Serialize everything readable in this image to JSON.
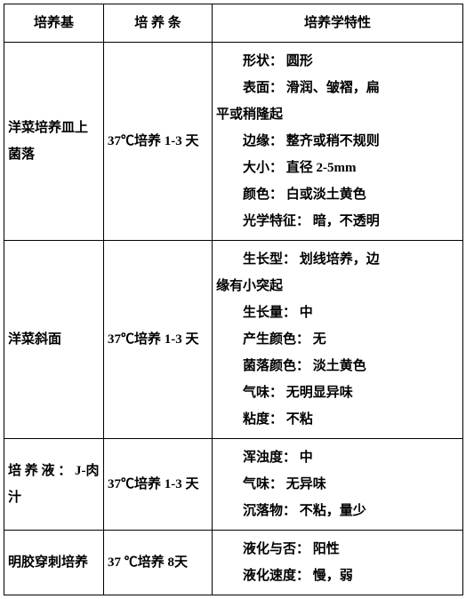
{
  "table": {
    "headers": [
      "培养基",
      "培 养 条",
      "培养学特性"
    ],
    "rows": [
      {
        "medium": "洋菜培养皿上菌落",
        "condition": "37℃培养 1-3 天",
        "props": [
          {
            "indent": true,
            "text": "形状： 圆形"
          },
          {
            "indent": true,
            "text": "表面： 滑润、皱褶，扁"
          },
          {
            "indent": false,
            "text": "平或稍隆起"
          },
          {
            "indent": true,
            "text": "边缘： 整齐或稍不规则"
          },
          {
            "indent": true,
            "text": "大小： 直径 2-5mm"
          },
          {
            "indent": true,
            "text": "颜色： 白或淡土黄色"
          },
          {
            "indent": true,
            "text": "光学特征： 暗，不透明"
          }
        ]
      },
      {
        "medium": "洋菜斜面",
        "condition": "37℃培养 1-3 天",
        "props": [
          {
            "indent": true,
            "text": "生长型： 划线培养，边"
          },
          {
            "indent": false,
            "text": "缘有小突起"
          },
          {
            "indent": true,
            "text": "生长量： 中"
          },
          {
            "indent": true,
            "text": "产生颜色： 无"
          },
          {
            "indent": true,
            "text": "菌落颜色： 淡土黄色"
          },
          {
            "indent": true,
            "text": "气味： 无明显异味"
          },
          {
            "indent": true,
            "text": "粘度： 不粘"
          }
        ]
      },
      {
        "medium": "培 养 液 ： J-肉汁",
        "condition": "37℃培养 1-3 天",
        "props": [
          {
            "indent": true,
            "text": "浑浊度： 中"
          },
          {
            "indent": true,
            "text": "气味： 无异味"
          },
          {
            "indent": true,
            "text": "沉落物： 不粘，量少"
          }
        ]
      },
      {
        "medium": "明胶穿刺培养",
        "condition": "37 ℃培养  8天",
        "props": [
          {
            "indent": true,
            "text": "液化与否： 阳性"
          },
          {
            "indent": true,
            "text": "液化速度： 慢，弱"
          }
        ]
      }
    ]
  }
}
